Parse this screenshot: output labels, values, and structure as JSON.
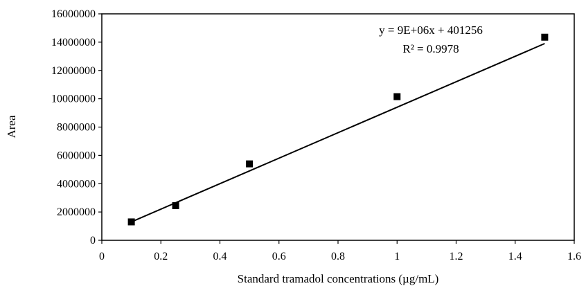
{
  "chart_data": {
    "type": "scatter",
    "title": "",
    "xlabel": "Standard tramadol concentrations (µg/mL)",
    "ylabel": "Area",
    "xlim": [
      0,
      1.6
    ],
    "ylim": [
      0,
      16000000
    ],
    "x_ticks": [
      0,
      0.2,
      0.4,
      0.6,
      0.8,
      1,
      1.2,
      1.4,
      1.6
    ],
    "x_tick_labels": [
      "0",
      "0.2",
      "0.4",
      "0.6",
      "0.8",
      "1",
      "1.2",
      "1.4",
      "1.6"
    ],
    "y_ticks": [
      0,
      2000000,
      4000000,
      6000000,
      8000000,
      10000000,
      12000000,
      14000000,
      16000000
    ],
    "y_tick_labels": [
      "0",
      "2000000",
      "4000000",
      "6000000",
      "8000000",
      "10000000",
      "12000000",
      "14000000",
      "16000000"
    ],
    "grid": false,
    "marker": "square",
    "marker_color": "#000000",
    "line_color": "#000000",
    "series": [
      {
        "x": [
          0.1,
          0.25,
          0.5,
          1.0,
          1.5
        ],
        "y": [
          1300000,
          2450000,
          5400000,
          10150000,
          14350000
        ]
      }
    ],
    "trendline": {
      "type": "linear",
      "slope": 9000000,
      "intercept": 401256,
      "x_range": [
        0.1,
        1.5
      ]
    },
    "annotations": {
      "equation": "y = 9E+06x + 401256",
      "r_squared": "R² = 0.9978"
    }
  }
}
